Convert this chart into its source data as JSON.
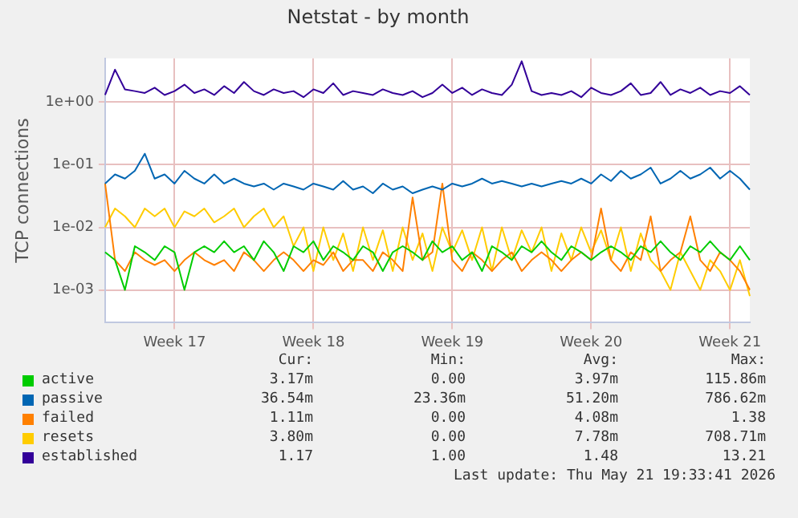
{
  "chart_data": {
    "type": "line",
    "title": "Netstat - by month",
    "ylabel": "TCP connections",
    "log": "y",
    "grid": true,
    "legend": "bottom left",
    "marker": "none",
    "line_style": "solid",
    "categories": [
      null,
      null,
      null,
      null,
      null,
      null,
      null,
      "Week 17",
      null,
      null,
      null,
      null,
      null,
      null,
      null,
      null,
      null,
      null,
      null,
      null,
      null,
      "Week 18",
      null,
      null,
      null,
      null,
      null,
      null,
      null,
      null,
      null,
      null,
      null,
      null,
      null,
      "Week 19",
      null,
      null,
      null,
      null,
      null,
      null,
      null,
      null,
      null,
      null,
      null,
      null,
      null,
      "Week 20",
      null,
      null,
      null,
      null,
      null,
      null,
      null,
      null,
      null,
      null,
      null,
      null,
      null,
      "Week 21",
      null,
      null
    ],
    "ylim": [
      0.0003,
      5
    ],
    "yticks": [
      {
        "value": 0.001,
        "label": "1e-03"
      },
      {
        "value": 0.01,
        "label": "1e-02"
      },
      {
        "value": 0.1,
        "label": "1e-01"
      },
      {
        "value": 1,
        "label": "1e+00"
      }
    ],
    "series": [
      {
        "name": "active",
        "color": "#00cc00",
        "values": [
          0.004,
          0.003,
          0.001,
          0.005,
          0.004,
          0.003,
          0.005,
          0.004,
          0.001,
          0.004,
          0.005,
          0.004,
          0.006,
          0.004,
          0.005,
          0.003,
          0.006,
          0.004,
          0.002,
          0.005,
          0.004,
          0.006,
          0.003,
          0.005,
          0.004,
          0.003,
          0.005,
          0.004,
          0.002,
          0.004,
          0.005,
          0.004,
          0.003,
          0.006,
          0.004,
          0.005,
          0.003,
          0.004,
          0.002,
          0.005,
          0.004,
          0.003,
          0.005,
          0.004,
          0.006,
          0.004,
          0.003,
          0.005,
          0.004,
          0.003,
          0.004,
          0.005,
          0.004,
          0.003,
          0.005,
          0.004,
          0.006,
          0.004,
          0.003,
          0.005,
          0.004,
          0.006,
          0.004,
          0.003,
          0.005,
          0.003
        ]
      },
      {
        "name": "passive",
        "color": "#0066b3",
        "values": [
          0.05,
          0.07,
          0.06,
          0.08,
          0.15,
          0.06,
          0.07,
          0.05,
          0.08,
          0.06,
          0.05,
          0.07,
          0.05,
          0.06,
          0.05,
          0.045,
          0.05,
          0.04,
          0.05,
          0.045,
          0.04,
          0.05,
          0.045,
          0.04,
          0.055,
          0.04,
          0.045,
          0.035,
          0.05,
          0.04,
          0.045,
          0.035,
          0.04,
          0.045,
          0.04,
          0.05,
          0.045,
          0.05,
          0.06,
          0.05,
          0.055,
          0.05,
          0.045,
          0.05,
          0.045,
          0.05,
          0.055,
          0.05,
          0.06,
          0.05,
          0.07,
          0.055,
          0.08,
          0.06,
          0.07,
          0.09,
          0.05,
          0.06,
          0.08,
          0.06,
          0.07,
          0.09,
          0.06,
          0.08,
          0.06,
          0.04
        ]
      },
      {
        "name": "failed",
        "color": "#ff8000",
        "values": [
          0.05,
          0.003,
          0.002,
          0.004,
          0.003,
          0.0025,
          0.003,
          0.002,
          0.003,
          0.004,
          0.003,
          0.0025,
          0.003,
          0.002,
          0.004,
          0.003,
          0.002,
          0.003,
          0.004,
          0.003,
          0.002,
          0.003,
          0.0025,
          0.004,
          0.002,
          0.003,
          0.003,
          0.002,
          0.004,
          0.003,
          0.002,
          0.03,
          0.003,
          0.004,
          0.05,
          0.003,
          0.002,
          0.004,
          0.003,
          0.002,
          0.003,
          0.004,
          0.002,
          0.003,
          0.004,
          0.003,
          0.002,
          0.003,
          0.004,
          0.003,
          0.02,
          0.003,
          0.002,
          0.004,
          0.003,
          0.015,
          0.002,
          0.003,
          0.004,
          0.015,
          0.003,
          0.002,
          0.004,
          0.003,
          0.002,
          0.001
        ]
      },
      {
        "name": "resets",
        "color": "#ffcc00",
        "values": [
          0.01,
          0.02,
          0.015,
          0.01,
          0.02,
          0.015,
          0.02,
          0.01,
          0.018,
          0.015,
          0.02,
          0.012,
          0.015,
          0.02,
          0.01,
          0.015,
          0.02,
          0.01,
          0.015,
          0.005,
          0.01,
          0.002,
          0.01,
          0.003,
          0.008,
          0.002,
          0.01,
          0.003,
          0.009,
          0.002,
          0.01,
          0.003,
          0.008,
          0.002,
          0.01,
          0.004,
          0.009,
          0.003,
          0.01,
          0.002,
          0.01,
          0.003,
          0.009,
          0.004,
          0.01,
          0.002,
          0.008,
          0.003,
          0.01,
          0.004,
          0.009,
          0.003,
          0.01,
          0.002,
          0.008,
          0.003,
          0.002,
          0.001,
          0.004,
          0.002,
          0.001,
          0.003,
          0.002,
          0.001,
          0.003,
          0.0008
        ]
      },
      {
        "name": "established",
        "color": "#330099",
        "values": [
          1.3,
          3.3,
          1.6,
          1.5,
          1.4,
          1.7,
          1.3,
          1.5,
          1.9,
          1.4,
          1.6,
          1.3,
          1.8,
          1.4,
          2.1,
          1.5,
          1.3,
          1.6,
          1.4,
          1.5,
          1.2,
          1.6,
          1.4,
          2.0,
          1.3,
          1.5,
          1.4,
          1.3,
          1.6,
          1.4,
          1.3,
          1.5,
          1.2,
          1.4,
          1.9,
          1.4,
          1.7,
          1.3,
          1.6,
          1.4,
          1.3,
          1.9,
          4.5,
          1.5,
          1.3,
          1.4,
          1.3,
          1.5,
          1.2,
          1.7,
          1.4,
          1.3,
          1.5,
          2.0,
          1.3,
          1.4,
          2.1,
          1.3,
          1.6,
          1.4,
          1.7,
          1.3,
          1.5,
          1.4,
          1.8,
          1.3
        ]
      }
    ],
    "annotations": [
      "Cur:",
      "Min:",
      "Avg:",
      "Max:",
      "3.17m",
      "0.00",
      "3.97m",
      "115.86m",
      "36.54m",
      "23.36m",
      "51.20m",
      "786.62m",
      "1.11m",
      "0.00",
      "4.08m",
      "1.38",
      "3.80m",
      "0.00",
      "7.78m",
      "708.71m",
      "1.17",
      "1.00",
      "1.48",
      "13.21",
      "Last update: Thu May 21 19:33:41 2026"
    ]
  }
}
